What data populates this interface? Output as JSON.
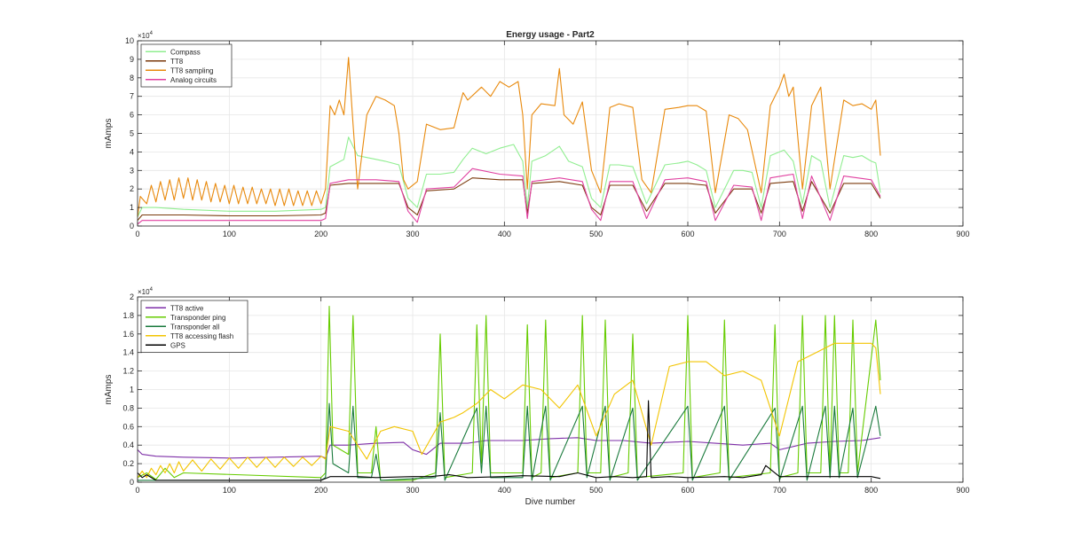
{
  "figure": {
    "background": "#ffffff"
  },
  "chart_data": [
    {
      "type": "line",
      "title": "Energy usage - Part2",
      "xlabel": "",
      "ylabel": "mAmps",
      "xlim": [
        0,
        900
      ],
      "ylim": [
        0,
        10
      ],
      "y_multiplier_label": "×10",
      "y_multiplier_exp": "4",
      "xticks": [
        0,
        100,
        200,
        300,
        400,
        500,
        600,
        700,
        800,
        900
      ],
      "yticks": [
        0,
        1,
        2,
        3,
        4,
        5,
        6,
        7,
        8,
        9,
        10
      ],
      "grid": true,
      "legend_position": "top-left",
      "series": [
        {
          "name": "Compass",
          "color": "#90ee90",
          "x": [
            0,
            5,
            20,
            50,
            100,
            150,
            200,
            205,
            210,
            225,
            230,
            240,
            260,
            270,
            285,
            295,
            305,
            315,
            330,
            345,
            355,
            365,
            380,
            395,
            410,
            420,
            425,
            430,
            445,
            460,
            470,
            485,
            495,
            505,
            515,
            525,
            540,
            555,
            575,
            590,
            600,
            610,
            620,
            630,
            650,
            660,
            670,
            680,
            690,
            700,
            705,
            715,
            725,
            735,
            745,
            755,
            770,
            780,
            790,
            800,
            805,
            810
          ],
          "values": [
            0.5,
            1.0,
            1.0,
            0.9,
            0.8,
            0.8,
            0.9,
            1.0,
            3.2,
            3.6,
            4.8,
            3.8,
            3.6,
            3.5,
            3.3,
            1.5,
            1.0,
            2.8,
            2.8,
            2.9,
            3.6,
            4.2,
            3.9,
            4.2,
            4.4,
            3.5,
            1.0,
            3.5,
            3.8,
            4.3,
            3.5,
            3.2,
            1.5,
            1.0,
            3.3,
            3.3,
            3.2,
            1.2,
            3.3,
            3.4,
            3.5,
            3.3,
            3.0,
            1.0,
            3.0,
            3.0,
            2.9,
            1.0,
            3.8,
            4.0,
            4.1,
            3.5,
            1.2,
            3.8,
            3.5,
            1.0,
            3.8,
            3.7,
            3.8,
            3.5,
            3.4,
            1.8
          ]
        },
        {
          "name": "TT8",
          "color": "#7b3a0c",
          "x": [
            0,
            5,
            20,
            50,
            100,
            150,
            200,
            205,
            210,
            230,
            260,
            285,
            295,
            305,
            315,
            345,
            365,
            395,
            420,
            425,
            430,
            460,
            485,
            495,
            505,
            515,
            540,
            555,
            575,
            600,
            620,
            630,
            650,
            670,
            680,
            690,
            715,
            725,
            735,
            755,
            770,
            800,
            810
          ],
          "values": [
            0.3,
            0.6,
            0.6,
            0.6,
            0.55,
            0.55,
            0.6,
            0.7,
            2.2,
            2.3,
            2.3,
            2.3,
            1.0,
            0.6,
            1.9,
            2.0,
            2.6,
            2.5,
            2.5,
            0.7,
            2.3,
            2.4,
            2.2,
            1.0,
            0.6,
            2.2,
            2.2,
            0.8,
            2.3,
            2.3,
            2.2,
            0.7,
            2.0,
            2.0,
            0.7,
            2.3,
            2.4,
            0.8,
            2.4,
            0.7,
            2.3,
            2.3,
            1.5
          ]
        },
        {
          "name": "TT8 sampling",
          "color": "#e8890c",
          "x": [
            0,
            3,
            10,
            15,
            20,
            25,
            30,
            35,
            40,
            45,
            50,
            55,
            60,
            65,
            70,
            75,
            80,
            85,
            90,
            95,
            100,
            105,
            110,
            115,
            120,
            125,
            130,
            135,
            140,
            145,
            150,
            155,
            160,
            165,
            170,
            175,
            180,
            185,
            190,
            195,
            200,
            205,
            210,
            215,
            220,
            225,
            230,
            235,
            240,
            250,
            260,
            270,
            280,
            285,
            290,
            295,
            305,
            315,
            330,
            345,
            350,
            355,
            360,
            375,
            385,
            395,
            405,
            415,
            420,
            425,
            430,
            440,
            455,
            460,
            465,
            475,
            485,
            495,
            505,
            515,
            525,
            540,
            550,
            560,
            575,
            590,
            600,
            610,
            620,
            630,
            645,
            655,
            665,
            680,
            690,
            700,
            705,
            710,
            715,
            725,
            735,
            745,
            755,
            770,
            780,
            790,
            800,
            805,
            810
          ],
          "values": [
            0.5,
            1.6,
            1.2,
            2.2,
            1.3,
            2.4,
            1.4,
            2.5,
            1.4,
            2.6,
            1.5,
            2.6,
            1.4,
            2.5,
            1.4,
            2.4,
            1.3,
            2.3,
            1.3,
            2.2,
            1.2,
            2.2,
            1.2,
            2.1,
            1.2,
            2.1,
            1.2,
            2.0,
            1.2,
            2.0,
            1.1,
            2.0,
            1.1,
            2.0,
            1.1,
            1.9,
            1.1,
            1.9,
            1.1,
            1.9,
            1.2,
            2.0,
            6.5,
            6.0,
            6.8,
            6.0,
            9.1,
            5.5,
            2.0,
            6.0,
            7.0,
            6.8,
            6.5,
            5.0,
            2.5,
            2.0,
            2.4,
            5.5,
            5.2,
            5.3,
            6.3,
            7.2,
            6.8,
            7.5,
            7.0,
            7.8,
            7.5,
            7.8,
            6.0,
            2.0,
            6.0,
            6.6,
            6.5,
            8.5,
            6.0,
            5.5,
            6.7,
            3.0,
            1.8,
            6.4,
            6.6,
            6.4,
            2.5,
            1.8,
            6.3,
            6.4,
            6.5,
            6.5,
            6.2,
            1.8,
            6.0,
            5.8,
            5.2,
            1.8,
            6.5,
            7.5,
            8.2,
            7.0,
            7.5,
            2.0,
            6.5,
            7.5,
            2.0,
            6.8,
            6.5,
            6.6,
            6.3,
            6.8,
            3.8
          ]
        },
        {
          "name": "Analog circuits",
          "color": "#e040a0",
          "x": [
            0,
            5,
            20,
            50,
            100,
            150,
            200,
            205,
            210,
            230,
            260,
            285,
            295,
            305,
            315,
            345,
            365,
            395,
            420,
            425,
            430,
            460,
            485,
            495,
            505,
            515,
            540,
            555,
            575,
            600,
            620,
            630,
            650,
            670,
            680,
            690,
            715,
            725,
            735,
            755,
            770,
            800,
            810
          ],
          "values": [
            0.1,
            0.3,
            0.3,
            0.3,
            0.3,
            0.3,
            0.3,
            0.4,
            2.3,
            2.5,
            2.5,
            2.4,
            0.8,
            0.2,
            2.0,
            2.1,
            3.1,
            2.8,
            2.7,
            0.4,
            2.4,
            2.6,
            2.4,
            0.9,
            0.3,
            2.4,
            2.4,
            0.4,
            2.5,
            2.6,
            2.4,
            0.3,
            2.2,
            2.1,
            0.3,
            2.6,
            2.8,
            0.4,
            2.7,
            0.3,
            2.7,
            2.5,
            1.6
          ]
        }
      ]
    },
    {
      "type": "line",
      "title": "",
      "xlabel": "Dive number",
      "ylabel": "mAmps",
      "xlim": [
        0,
        900
      ],
      "ylim": [
        0,
        2
      ],
      "y_multiplier_label": "×10",
      "y_multiplier_exp": "4",
      "xticks": [
        0,
        100,
        200,
        300,
        400,
        500,
        600,
        700,
        800,
        900
      ],
      "yticks": [
        0,
        0.2,
        0.4,
        0.6,
        0.8,
        1,
        1.2,
        1.4,
        1.6,
        1.8,
        2
      ],
      "ytick_labels": [
        "0",
        "0.2",
        "0.4",
        "0.6",
        "0.8",
        "1",
        "1.2",
        "1.4",
        "1.6",
        "1.8",
        "2"
      ],
      "grid": true,
      "legend_position": "top-left",
      "series": [
        {
          "name": "TT8 active",
          "color": "#7e2fa8",
          "x": [
            0,
            5,
            20,
            50,
            100,
            150,
            200,
            205,
            210,
            230,
            260,
            290,
            300,
            315,
            330,
            360,
            380,
            420,
            450,
            480,
            500,
            530,
            560,
            600,
            630,
            660,
            690,
            700,
            730,
            760,
            790,
            810
          ],
          "values": [
            0.35,
            0.3,
            0.28,
            0.27,
            0.26,
            0.27,
            0.28,
            0.26,
            0.4,
            0.4,
            0.42,
            0.43,
            0.35,
            0.3,
            0.42,
            0.42,
            0.45,
            0.45,
            0.47,
            0.48,
            0.45,
            0.45,
            0.42,
            0.44,
            0.42,
            0.4,
            0.42,
            0.35,
            0.42,
            0.44,
            0.45,
            0.48
          ]
        },
        {
          "name": "Transponder ping",
          "color": "#66cc00",
          "x": [
            0,
            10,
            20,
            30,
            40,
            50,
            200,
            205,
            209,
            213,
            230,
            235,
            240,
            255,
            260,
            265,
            300,
            325,
            330,
            335,
            365,
            370,
            375,
            380,
            385,
            420,
            425,
            430,
            440,
            445,
            450,
            480,
            485,
            490,
            505,
            510,
            515,
            535,
            540,
            545,
            595,
            600,
            605,
            635,
            640,
            645,
            690,
            695,
            700,
            720,
            725,
            730,
            745,
            750,
            755,
            760,
            765,
            775,
            780,
            785,
            805,
            810
          ],
          "values": [
            0.05,
            0.1,
            0.03,
            0.15,
            0.05,
            0.1,
            0.05,
            0.1,
            1.9,
            0.4,
            0.3,
            1.8,
            0.1,
            0.1,
            0.6,
            0.02,
            0.02,
            0.1,
            1.6,
            0.05,
            0.1,
            1.7,
            0.2,
            1.8,
            0.1,
            0.1,
            1.7,
            0.05,
            0.1,
            1.75,
            0.05,
            0.1,
            1.8,
            0.1,
            0.1,
            1.75,
            0.05,
            0.1,
            1.6,
            0.05,
            0.1,
            1.8,
            0.05,
            0.1,
            1.75,
            0.05,
            0.1,
            1.7,
            0.05,
            0.1,
            1.8,
            0.1,
            0.1,
            1.8,
            0.1,
            1.8,
            0.1,
            0.1,
            1.75,
            0.1,
            1.75,
            1.1
          ]
        },
        {
          "name": "Transponder all",
          "color": "#1a7a3c",
          "x": [
            0,
            200,
            205,
            209,
            213,
            230,
            235,
            240,
            255,
            260,
            265,
            325,
            330,
            335,
            370,
            375,
            380,
            385,
            420,
            425,
            430,
            445,
            450,
            485,
            490,
            510,
            515,
            540,
            545,
            600,
            605,
            640,
            645,
            695,
            700,
            725,
            730,
            750,
            755,
            760,
            765,
            780,
            785,
            805,
            810
          ],
          "values": [
            0.02,
            0.02,
            0.05,
            0.85,
            0.2,
            0.1,
            0.82,
            0.05,
            0.05,
            0.3,
            0.02,
            0.05,
            0.75,
            0.02,
            0.8,
            0.1,
            0.82,
            0.05,
            0.05,
            0.82,
            0.02,
            0.82,
            0.02,
            0.82,
            0.05,
            0.82,
            0.02,
            0.8,
            0.02,
            0.82,
            0.02,
            0.82,
            0.02,
            0.8,
            0.02,
            0.82,
            0.02,
            0.82,
            0.05,
            0.82,
            0.05,
            0.8,
            0.05,
            0.82,
            0.5
          ]
        },
        {
          "name": "TT8 accessing flash",
          "color": "#f2c400",
          "x": [
            0,
            5,
            10,
            15,
            20,
            25,
            30,
            35,
            40,
            45,
            50,
            60,
            70,
            80,
            90,
            100,
            110,
            120,
            130,
            140,
            150,
            160,
            170,
            180,
            190,
            200,
            205,
            210,
            230,
            250,
            265,
            280,
            300,
            310,
            330,
            345,
            355,
            370,
            385,
            400,
            420,
            440,
            460,
            480,
            500,
            520,
            540,
            560,
            580,
            600,
            620,
            640,
            660,
            680,
            700,
            720,
            740,
            760,
            780,
            800,
            805,
            810
          ],
          "values": [
            0.05,
            0.12,
            0.05,
            0.15,
            0.08,
            0.18,
            0.1,
            0.2,
            0.1,
            0.22,
            0.12,
            0.24,
            0.12,
            0.25,
            0.14,
            0.26,
            0.15,
            0.27,
            0.16,
            0.27,
            0.16,
            0.27,
            0.17,
            0.27,
            0.18,
            0.28,
            0.25,
            0.6,
            0.55,
            0.25,
            0.55,
            0.6,
            0.55,
            0.3,
            0.65,
            0.7,
            0.75,
            0.85,
            1.0,
            0.9,
            1.05,
            1.0,
            0.8,
            1.05,
            0.5,
            0.95,
            1.1,
            0.4,
            1.25,
            1.3,
            1.3,
            1.15,
            1.2,
            1.1,
            0.5,
            1.3,
            1.4,
            1.5,
            1.5,
            1.5,
            1.45,
            0.95
          ]
        },
        {
          "name": "GPS",
          "color": "#000000",
          "x": [
            0,
            5,
            10,
            20,
            200,
            210,
            240,
            260,
            300,
            320,
            340,
            360,
            400,
            420,
            460,
            480,
            500,
            520,
            540,
            555,
            557,
            560,
            580,
            600,
            640,
            660,
            680,
            685,
            700,
            740,
            800,
            810
          ],
          "values": [
            0.1,
            0.05,
            0.08,
            0.02,
            0.02,
            0.06,
            0.06,
            0.05,
            0.06,
            0.06,
            0.08,
            0.05,
            0.06,
            0.07,
            0.06,
            0.1,
            0.05,
            0.06,
            0.05,
            0.06,
            0.88,
            0.05,
            0.06,
            0.05,
            0.06,
            0.05,
            0.08,
            0.18,
            0.06,
            0.06,
            0.06,
            0.04
          ]
        }
      ]
    }
  ]
}
